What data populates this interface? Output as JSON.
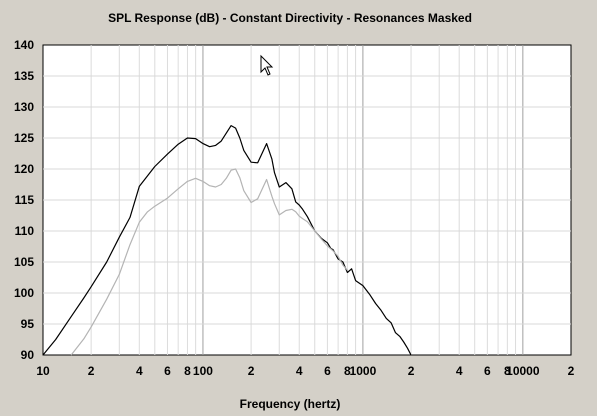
{
  "chart_data": {
    "type": "line",
    "title": "SPL Response (dB) - Constant Directivity - Resonances Masked",
    "xlabel": "Frequency (hertz)",
    "ylabel": "",
    "xscale": "log",
    "xlim": [
      10,
      20000
    ],
    "ylim": [
      90,
      140
    ],
    "grid": true,
    "legend": "none",
    "x_tick_labels": [
      "10",
      "2",
      "4",
      "6",
      "8",
      "100",
      "2",
      "4",
      "6",
      "8",
      "1000",
      "2",
      "4",
      "6",
      "8",
      "10000",
      "2"
    ],
    "x_tick_values": [
      10,
      20,
      40,
      60,
      80,
      100,
      200,
      400,
      600,
      800,
      1000,
      2000,
      4000,
      6000,
      8000,
      10000,
      20000
    ],
    "y_tick_labels": [
      "90",
      "95",
      "100",
      "105",
      "110",
      "115",
      "120",
      "125",
      "130",
      "135",
      "140"
    ],
    "series": [
      {
        "color": "#000000",
        "x": [
          10,
          12,
          15,
          18,
          20,
          25,
          30,
          35,
          40,
          50,
          60,
          70,
          80,
          90,
          100,
          110,
          120,
          130,
          150,
          160,
          170,
          180,
          200,
          220,
          250,
          270,
          280,
          300,
          330,
          360,
          380,
          400,
          420,
          450,
          500,
          550,
          600,
          630,
          650,
          700,
          750,
          800,
          850,
          900,
          1000,
          1100,
          1200,
          1300,
          1400,
          1500,
          1600,
          1700,
          1800,
          1900,
          2000
        ],
        "y": [
          90,
          92.5,
          96.2,
          99.2,
          101,
          105,
          109,
          112.2,
          117.2,
          120.4,
          122.4,
          124,
          125,
          124.9,
          124.1,
          123.6,
          123.8,
          124.5,
          127,
          126.6,
          125,
          123,
          121.1,
          121,
          124.1,
          121.6,
          119.4,
          117.1,
          117.8,
          116.8,
          114.7,
          114.2,
          113.5,
          112.3,
          110,
          108.8,
          108.1,
          107.2,
          107,
          105.5,
          105,
          103.3,
          103.9,
          102,
          101.2,
          99.8,
          98.3,
          97.2,
          95.9,
          95.2,
          93.6,
          93,
          92.1,
          91.1,
          90
        ]
      },
      {
        "color": "#b4b4b4",
        "x": [
          15,
          18,
          20,
          25,
          30,
          35,
          40,
          45,
          50,
          60,
          70,
          80,
          90,
          100,
          110,
          120,
          130,
          140,
          150,
          160,
          170,
          180,
          200,
          220,
          250,
          270,
          280,
          300,
          330,
          360,
          380,
          400,
          420,
          450,
          500,
          550,
          600,
          650,
          700,
          750,
          800
        ],
        "y": [
          90,
          92.6,
          94.5,
          99,
          103,
          107.8,
          111.4,
          113.1,
          114,
          115.3,
          116.8,
          118,
          118.5,
          118,
          117.3,
          117.1,
          117.5,
          118.5,
          119.8,
          120,
          118.6,
          116.5,
          114.6,
          115.2,
          118.3,
          115.6,
          114.4,
          112.6,
          113.3,
          113.5,
          113.1,
          112.4,
          112,
          111.5,
          110,
          108.7,
          107.6,
          106.8,
          105.9,
          104.5,
          103.7
        ]
      }
    ]
  }
}
